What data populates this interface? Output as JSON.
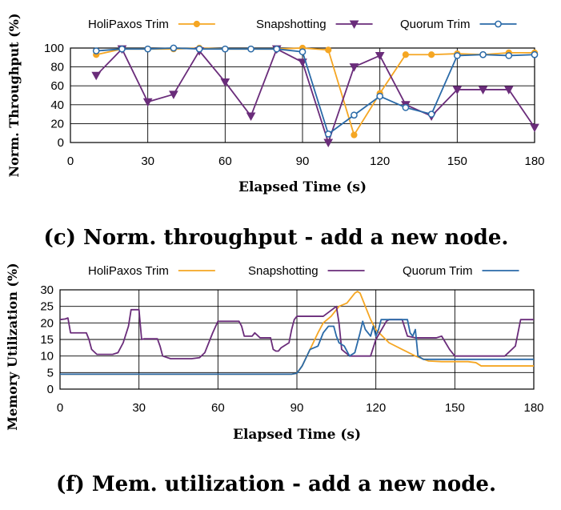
{
  "charts": [
    {
      "caption": "(c) Norm. throughput - add a new node.",
      "chart_data": {
        "type": "line",
        "title": "",
        "xlabel": "Elapsed Time (s)",
        "ylabel": "Norm. Throughput (%)",
        "xlim": [
          0,
          180
        ],
        "ylim": [
          0,
          100
        ],
        "xticks": [
          0,
          30,
          60,
          90,
          120,
          150,
          180
        ],
        "yticks": [
          0,
          20,
          40,
          60,
          80,
          100
        ],
        "grid": true,
        "legend": "top",
        "markers": true,
        "series": [
          {
            "name": "HoliPaxos Trim",
            "color": "#f5a623",
            "marker": "circle",
            "x": [
              10,
              20,
              30,
              40,
              50,
              60,
              70,
              80,
              90,
              100,
              110,
              120,
              130,
              140,
              150,
              160,
              170,
              180
            ],
            "y": [
              93,
              99,
              99,
              99,
              100,
              99,
              99,
              99,
              100,
              98,
              8,
              52,
              93,
              93,
              94,
              93,
              95,
              95
            ]
          },
          {
            "name": "Snapshotting",
            "color": "#6a2c7a",
            "marker": "triangle-down",
            "x": [
              10,
              20,
              30,
              40,
              50,
              60,
              70,
              80,
              90,
              100,
              110,
              120,
              130,
              140,
              150,
              160,
              170,
              180
            ],
            "y": [
              71,
              99,
              43,
              51,
              97,
              64,
              28,
              99,
              85,
              0,
              80,
              92,
              40,
              28,
              56,
              56,
              56,
              16
            ]
          },
          {
            "name": "Quorum Trim",
            "color": "#2a6aa8",
            "marker": "circle-open",
            "x": [
              10,
              20,
              30,
              40,
              50,
              60,
              70,
              80,
              90,
              100,
              110,
              120,
              130,
              140,
              150,
              160,
              170,
              180
            ],
            "y": [
              97,
              99,
              99,
              100,
              99,
              99,
              99,
              99,
              96,
              9,
              29,
              49,
              37,
              30,
              92,
              93,
              92,
              93
            ]
          }
        ]
      }
    },
    {
      "caption": "(f) Mem. utilization - add a new node.",
      "chart_data": {
        "type": "line",
        "title": "",
        "xlabel": "Elapsed Time (s)",
        "ylabel": "Memory Utilization (%)",
        "xlim": [
          0,
          180
        ],
        "ylim": [
          0,
          30
        ],
        "xticks": [
          0,
          30,
          60,
          90,
          120,
          150,
          180
        ],
        "yticks": [
          0,
          5,
          10,
          15,
          20,
          25,
          30
        ],
        "grid": true,
        "legend": "top",
        "markers": false,
        "series": [
          {
            "name": "HoliPaxos Trim",
            "color": "#f5a623",
            "x": [
              0,
              30,
              60,
              88,
              90,
              92,
              95,
              98,
              100,
              103,
              106,
              109,
              112,
              113,
              114,
              116,
              118,
              120,
              125,
              130,
              135,
              140,
              145,
              150,
              155,
              158,
              160,
              165,
              170,
              175,
              180
            ],
            "y": [
              4.5,
              4.5,
              4.5,
              4.5,
              4.8,
              7,
              12,
              17,
              20,
              22,
              25,
              26,
              29,
              29.5,
              29,
              25,
              21,
              18,
              14,
              12,
              10,
              8.5,
              8.3,
              8.3,
              8.3,
              8,
              7,
              7,
              7,
              7,
              7
            ]
          },
          {
            "name": "Snapshotting",
            "color": "#6a2c7a",
            "x": [
              0,
              2,
              3,
              4,
              10,
              11,
              12,
              14,
              20,
              22,
              24,
              26,
              27,
              30,
              31,
              32,
              37,
              38,
              39,
              42,
              50,
              53,
              55,
              58,
              60,
              68,
              69,
              70,
              73,
              74,
              76,
              80,
              81,
              82,
              83,
              84,
              87,
              88,
              89,
              90,
              100,
              105,
              106,
              107,
              110,
              115,
              118,
              120,
              124,
              125,
              130,
              132,
              135,
              140,
              143,
              145,
              148,
              150,
              165,
              169,
              173,
              175,
              180
            ],
            "y": [
              21,
              21.2,
              21.5,
              17,
              17,
              15,
              12,
              10.5,
              10.5,
              11,
              14,
              19,
              24,
              24,
              15,
              15.2,
              15.2,
              13,
              10,
              9.2,
              9.2,
              9.5,
              11,
              17,
              20.5,
              20.5,
              19,
              16,
              16,
              17,
              15.5,
              15.5,
              12,
              11.5,
              11.5,
              12.5,
              14,
              18,
              21,
              22,
              22,
              25,
              20,
              12,
              10,
              10,
              10,
              15,
              20.5,
              21,
              21,
              16,
              15.5,
              15.5,
              15.5,
              16,
              12,
              10,
              10,
              10,
              13,
              21,
              21
            ]
          },
          {
            "name": "Quorum Trim",
            "color": "#2a6aa8",
            "x": [
              0,
              30,
              60,
              88,
              90,
              92,
              95,
              98,
              100,
              102,
              104,
              105,
              106,
              108,
              110,
              112,
              114,
              115,
              116,
              118,
              119,
              120,
              121,
              122,
              124,
              126,
              128,
              130,
              132,
              133,
              134,
              135,
              136,
              138,
              140,
              150,
              160,
              170,
              180
            ],
            "y": [
              4.5,
              4.5,
              4.5,
              4.5,
              4.8,
              7,
              12,
              13,
              17,
              19,
              19,
              16,
              14,
              13,
              10,
              11,
              17,
              20.5,
              18,
              16,
              19,
              16,
              18,
              21,
              21,
              21,
              21,
              21,
              21,
              17,
              16,
              18,
              10,
              9,
              9,
              9,
              9,
              9,
              9
            ]
          }
        ]
      }
    }
  ]
}
